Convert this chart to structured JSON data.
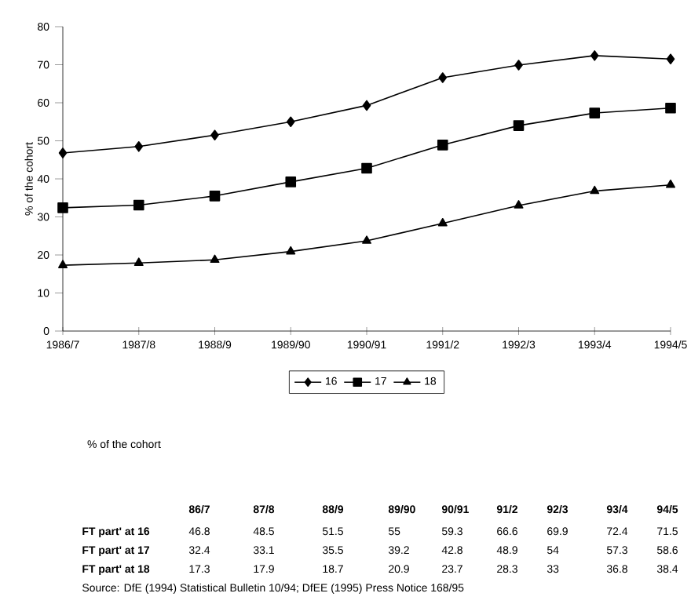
{
  "chart_data": {
    "type": "line",
    "ylabel": "% of the cohort",
    "categories": [
      "1986/7",
      "1987/8",
      "1988/9",
      "1989/90",
      "1990/91",
      "1991/2",
      "1992/3",
      "1993/4",
      "1994/5"
    ],
    "series": [
      {
        "name": "16",
        "color": "#000000",
        "marker": "diamond",
        "values": [
          46.8,
          48.5,
          51.5,
          55,
          59.3,
          66.6,
          69.9,
          72.4,
          71.5
        ]
      },
      {
        "name": "17",
        "color": "#000000",
        "marker": "square",
        "values": [
          32.4,
          33.1,
          35.5,
          39.2,
          42.8,
          48.9,
          54,
          57.3,
          58.6
        ]
      },
      {
        "name": "18",
        "color": "#000000",
        "marker": "triangle",
        "values": [
          17.3,
          17.9,
          18.7,
          20.9,
          23.7,
          28.3,
          33,
          36.8,
          38.4
        ]
      }
    ],
    "ylim": [
      0,
      80
    ],
    "yticks": [
      0,
      10,
      20,
      30,
      40,
      50,
      60,
      70,
      80
    ],
    "grid": false,
    "legend": "bottom",
    "line_style": "solid",
    "annotations": [
      "% of the cohort",
      "86/7",
      "87/8",
      "88/9",
      "89/90",
      "90/91",
      "91/2",
      "92/3",
      "93/4",
      "94/5",
      "FT part' at 16",
      "FT part' at 17",
      "FT part' at 18",
      "Source: DfE (1994) Statistical Bulletin 10/94; DfEE (1995) Press Notice 168/95",
      "46.8",
      "48.5",
      "51.5",
      "55",
      "59.3",
      "66.6",
      "69.9",
      "72.4",
      "71.5",
      "32.4",
      "33.1",
      "35.5",
      "39.2",
      "42.8",
      "48.9",
      "54",
      "57.3",
      "58.6",
      "17.3",
      "17.9",
      "18.7",
      "20.9",
      "23.7",
      "28.3",
      "33",
      "36.8",
      "38.4"
    ]
  }
}
